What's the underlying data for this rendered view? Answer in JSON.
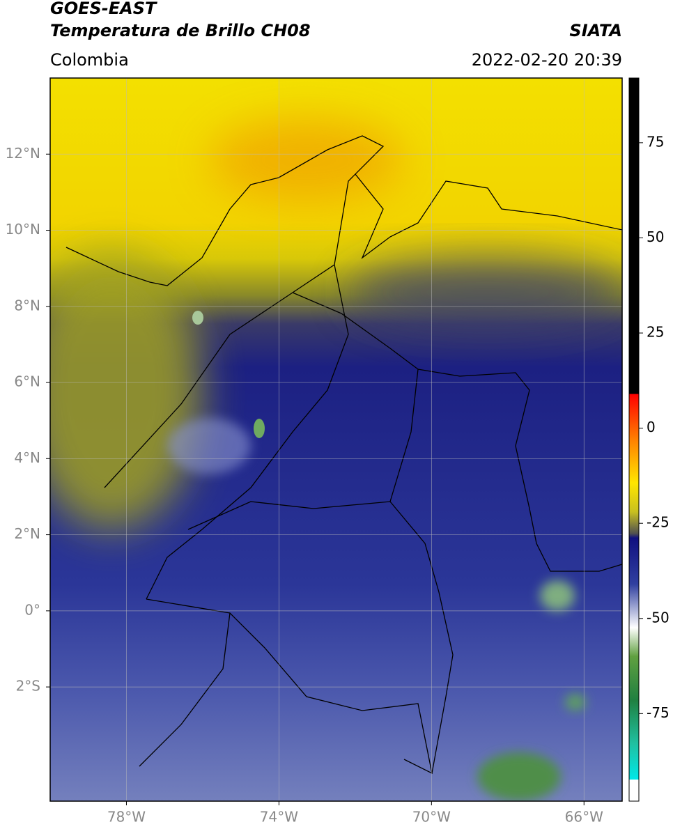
{
  "header": {
    "title": "GOES-EAST",
    "subtitle": "Temperatura de Brillo CH08",
    "source": "SIATA",
    "region": "Colombia",
    "datetime": "2022-02-20 20:39"
  },
  "map": {
    "xlim": [
      -80,
      -65
    ],
    "ylim": [
      -5,
      14
    ],
    "xticks": [
      {
        "value": -78,
        "label": "78°W"
      },
      {
        "value": -74,
        "label": "74°W"
      },
      {
        "value": -70,
        "label": "70°W"
      },
      {
        "value": -66,
        "label": "66°W"
      }
    ],
    "yticks": [
      {
        "value": 12,
        "label": "12°N"
      },
      {
        "value": 10,
        "label": "10°N"
      },
      {
        "value": 8,
        "label": "8°N"
      },
      {
        "value": 6,
        "label": "6°N"
      },
      {
        "value": 4,
        "label": "4°N"
      },
      {
        "value": 2,
        "label": "2°N"
      },
      {
        "value": 0,
        "label": "0°"
      },
      {
        "value": -2,
        "label": "2°S"
      }
    ],
    "grid": true
  },
  "colorbar": {
    "lim": [
      -98,
      92
    ],
    "ticks": [
      75,
      50,
      25,
      0,
      -25,
      -50,
      -75
    ]
  }
}
